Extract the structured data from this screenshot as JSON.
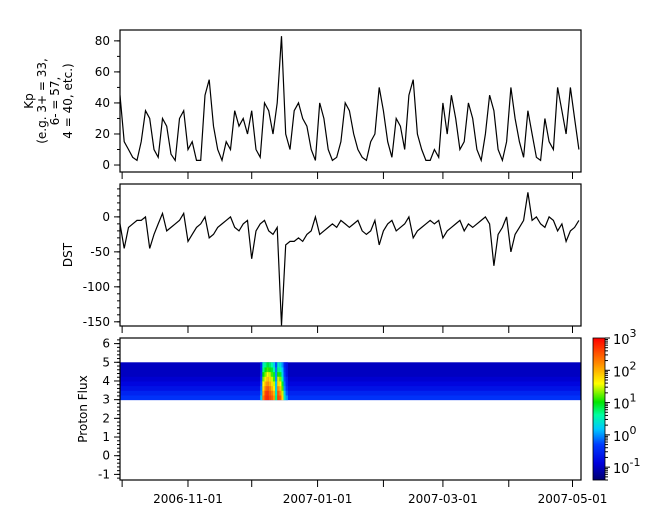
{
  "chart_data": [
    {
      "type": "line",
      "ylabel_lines": [
        "Kp",
        "(e.g. 3+ = 33,",
        "6- = 57,",
        "4 = 40, etc.)"
      ],
      "ylim": [
        -4.5,
        87
      ],
      "yticks": [
        0,
        20,
        40,
        60,
        80
      ],
      "xlim": [
        "2006-09-30",
        "2007-05-05"
      ],
      "series": [
        {
          "values": [
            45,
            15,
            10,
            5,
            3,
            15,
            35,
            30,
            10,
            5,
            30,
            25,
            7,
            3,
            30,
            35,
            10,
            15,
            3,
            3,
            45,
            55,
            25,
            10,
            3,
            15,
            10,
            35,
            25,
            30,
            20,
            35,
            10,
            5,
            40,
            35,
            20,
            40,
            83,
            20,
            10,
            35,
            40,
            30,
            25,
            10,
            3,
            40,
            30,
            10,
            3,
            5,
            15,
            40,
            35,
            20,
            10,
            5,
            3,
            15,
            20,
            50,
            35,
            15,
            5,
            30,
            25,
            10,
            45,
            55,
            20,
            10,
            3,
            3,
            10,
            5,
            40,
            20,
            45,
            30,
            10,
            15,
            40,
            30,
            10,
            3,
            20,
            45,
            35,
            10,
            3,
            15,
            50,
            30,
            15,
            5,
            35,
            20,
            5,
            3,
            30,
            15,
            10,
            50,
            35,
            20,
            50,
            30,
            10
          ]
        }
      ]
    },
    {
      "type": "line",
      "ylabel": "DST",
      "ylim": [
        -156,
        47
      ],
      "yticks": [
        0,
        -50,
        -100,
        -150
      ],
      "xlim": [
        "2006-09-30",
        "2007-05-05"
      ],
      "series": [
        {
          "values": [
            -10,
            -45,
            -15,
            -10,
            -5,
            -5,
            0,
            -45,
            -25,
            -10,
            5,
            -20,
            -15,
            -10,
            -5,
            5,
            -35,
            -25,
            -15,
            -10,
            0,
            -30,
            -25,
            -15,
            -10,
            -5,
            0,
            -15,
            -20,
            -10,
            -5,
            -60,
            -20,
            -10,
            -5,
            -20,
            -25,
            -15,
            -155,
            -40,
            -35,
            -35,
            -30,
            -35,
            -25,
            -20,
            0,
            -25,
            -20,
            -15,
            -10,
            -15,
            -5,
            -10,
            -15,
            -10,
            -5,
            -20,
            -25,
            -20,
            -5,
            -40,
            -20,
            -10,
            -5,
            -20,
            -15,
            -10,
            0,
            -30,
            -20,
            -15,
            -10,
            -5,
            -10,
            -5,
            -30,
            -20,
            -15,
            -10,
            -5,
            -20,
            -10,
            -15,
            -10,
            -5,
            0,
            -10,
            -70,
            -25,
            -15,
            0,
            -50,
            -25,
            -15,
            -5,
            35,
            -5,
            0,
            -10,
            -15,
            0,
            -5,
            -20,
            -10,
            -35,
            -20,
            -15,
            -5
          ]
        }
      ]
    },
    {
      "type": "heatmap",
      "ylabel": "Proton Flux",
      "ylim": [
        -1.3,
        6.3
      ],
      "yticks": [
        -1,
        0,
        1,
        2,
        3,
        4,
        5,
        6
      ],
      "xlim": [
        "2006-09-30",
        "2007-05-05"
      ],
      "y_bins": [
        3.0,
        3.25,
        3.5,
        3.75,
        4.0,
        4.25,
        4.5,
        4.75,
        5.0
      ],
      "background_values": [
        0.4,
        0.3,
        0.2,
        0.15,
        0.12,
        0.1,
        0.1,
        0.1
      ],
      "event_columns": [
        {
          "date": "2006-12-05",
          "values": [
            2,
            1,
            0.8,
            0.6,
            0.5,
            0.4,
            0.3,
            0.3
          ]
        },
        {
          "date": "2006-12-06",
          "values": [
            200,
            100,
            60,
            40,
            20,
            10,
            5,
            3
          ]
        },
        {
          "date": "2006-12-07",
          "values": [
            500,
            400,
            200,
            100,
            50,
            20,
            10,
            5
          ]
        },
        {
          "date": "2006-12-08",
          "values": [
            600,
            500,
            300,
            150,
            80,
            40,
            15,
            8
          ]
        },
        {
          "date": "2006-12-09",
          "values": [
            400,
            300,
            200,
            100,
            60,
            30,
            12,
            6
          ]
        },
        {
          "date": "2006-12-10",
          "values": [
            300,
            200,
            100,
            60,
            30,
            15,
            8,
            4
          ]
        },
        {
          "date": "2006-12-11",
          "values": [
            150,
            100,
            50,
            30,
            15,
            8,
            4,
            2
          ]
        },
        {
          "date": "2006-12-12",
          "values": [
            5,
            3,
            2,
            1.5,
            1,
            1,
            0.8,
            0.6
          ]
        },
        {
          "date": "2006-12-13",
          "values": [
            400,
            300,
            150,
            60,
            30,
            12,
            5,
            3
          ]
        },
        {
          "date": "2006-12-14",
          "values": [
            300,
            150,
            80,
            40,
            20,
            8,
            4,
            2
          ]
        },
        {
          "date": "2006-12-15",
          "values": [
            60,
            30,
            15,
            8,
            4,
            2,
            1.5,
            1
          ]
        },
        {
          "date": "2006-12-16",
          "values": [
            3,
            2,
            1,
            0.8,
            0.6,
            0.5,
            0.4,
            0.3
          ]
        },
        {
          "date": "2006-12-17",
          "values": [
            1,
            0.6,
            0.4,
            0.3,
            0.3,
            0.2,
            0.2,
            0.2
          ]
        }
      ],
      "colorbar": {
        "scale": "log",
        "range": [
          0.04,
          1000
        ],
        "colormap": "jet",
        "ticks": [
          {
            "base": "10",
            "exp": "3",
            "value": 1000
          },
          {
            "base": "10",
            "exp": "2",
            "value": 100
          },
          {
            "base": "10",
            "exp": "1",
            "value": 10
          },
          {
            "base": "10",
            "exp": "0",
            "value": 1
          },
          {
            "base": "10",
            "exp": "-1",
            "value": 0.1
          }
        ]
      }
    }
  ],
  "dates": [
    "2006-09-30",
    "2006-10-02",
    "2006-10-04",
    "2006-10-06",
    "2006-10-08",
    "2006-10-10",
    "2006-10-12",
    "2006-10-14",
    "2006-10-16",
    "2006-10-18",
    "2006-10-20",
    "2006-10-22",
    "2006-10-24",
    "2006-10-26",
    "2006-10-28",
    "2006-10-30",
    "2006-11-01",
    "2006-11-03",
    "2006-11-05",
    "2006-11-07",
    "2006-11-09",
    "2006-11-11",
    "2006-11-13",
    "2006-11-15",
    "2006-11-17",
    "2006-11-19",
    "2006-11-21",
    "2006-11-23",
    "2006-11-25",
    "2006-11-27",
    "2006-11-29",
    "2006-12-01",
    "2006-12-03",
    "2006-12-05",
    "2006-12-07",
    "2006-12-09",
    "2006-12-11",
    "2006-12-13",
    "2006-12-15",
    "2006-12-17",
    "2006-12-19",
    "2006-12-21",
    "2006-12-23",
    "2006-12-25",
    "2006-12-27",
    "2006-12-29",
    "2006-12-31",
    "2007-01-02",
    "2007-01-04",
    "2007-01-06",
    "2007-01-08",
    "2007-01-10",
    "2007-01-12",
    "2007-01-14",
    "2007-01-16",
    "2007-01-18",
    "2007-01-20",
    "2007-01-22",
    "2007-01-24",
    "2007-01-26",
    "2007-01-28",
    "2007-01-30",
    "2007-02-01",
    "2007-02-03",
    "2007-02-05",
    "2007-02-07",
    "2007-02-09",
    "2007-02-11",
    "2007-02-13",
    "2007-02-15",
    "2007-02-17",
    "2007-02-19",
    "2007-02-21",
    "2007-02-23",
    "2007-02-25",
    "2007-02-27",
    "2007-03-01",
    "2007-03-03",
    "2007-03-05",
    "2007-03-07",
    "2007-03-09",
    "2007-03-11",
    "2007-03-13",
    "2007-03-15",
    "2007-03-17",
    "2007-03-19",
    "2007-03-21",
    "2007-03-23",
    "2007-03-25",
    "2007-03-27",
    "2007-03-29",
    "2007-03-31",
    "2007-04-02",
    "2007-04-04",
    "2007-04-06",
    "2007-04-08",
    "2007-04-10",
    "2007-04-12",
    "2007-04-14",
    "2007-04-16",
    "2007-04-18",
    "2007-04-20",
    "2007-04-22",
    "2007-04-24",
    "2007-04-26",
    "2007-04-28",
    "2007-04-30",
    "2007-05-02",
    "2007-05-04"
  ],
  "x_axis": {
    "minor_ticks": [
      "2006-10-01",
      "2006-12-01",
      "2007-02-01",
      "2007-04-01"
    ],
    "labeled_ticks": [
      "2006-11-01",
      "2007-01-01",
      "2007-03-01",
      "2007-05-01"
    ]
  }
}
